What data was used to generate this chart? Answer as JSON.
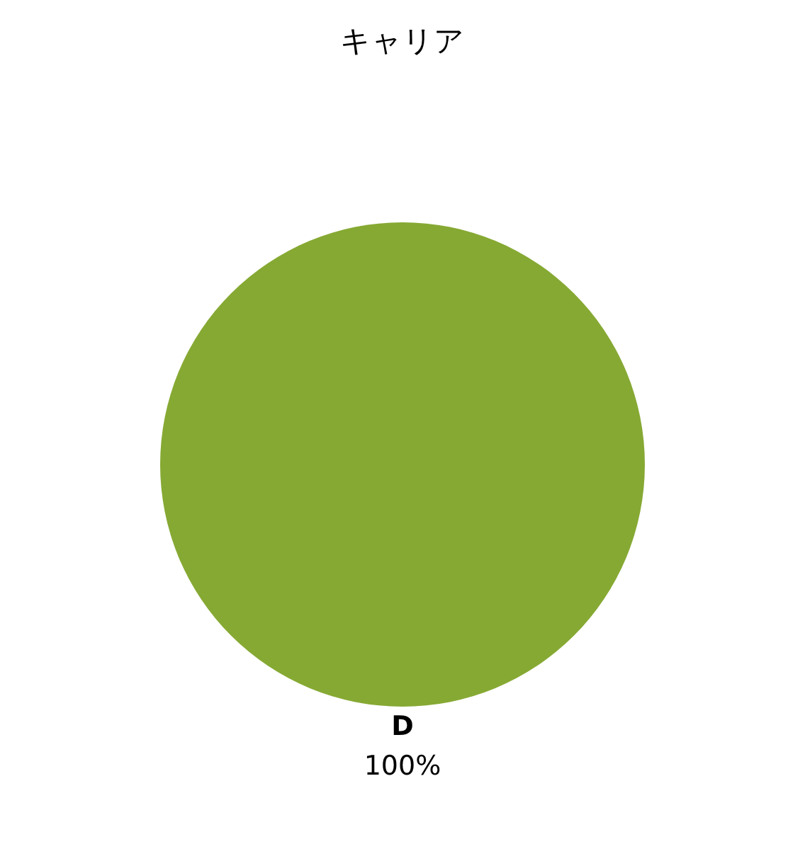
{
  "chart_data": {
    "type": "pie",
    "title": "キャリア",
    "categories": [
      "D"
    ],
    "values": [
      100
    ],
    "colors": [
      "#86a933"
    ],
    "value_labels": [
      "100%"
    ],
    "legend": false
  }
}
